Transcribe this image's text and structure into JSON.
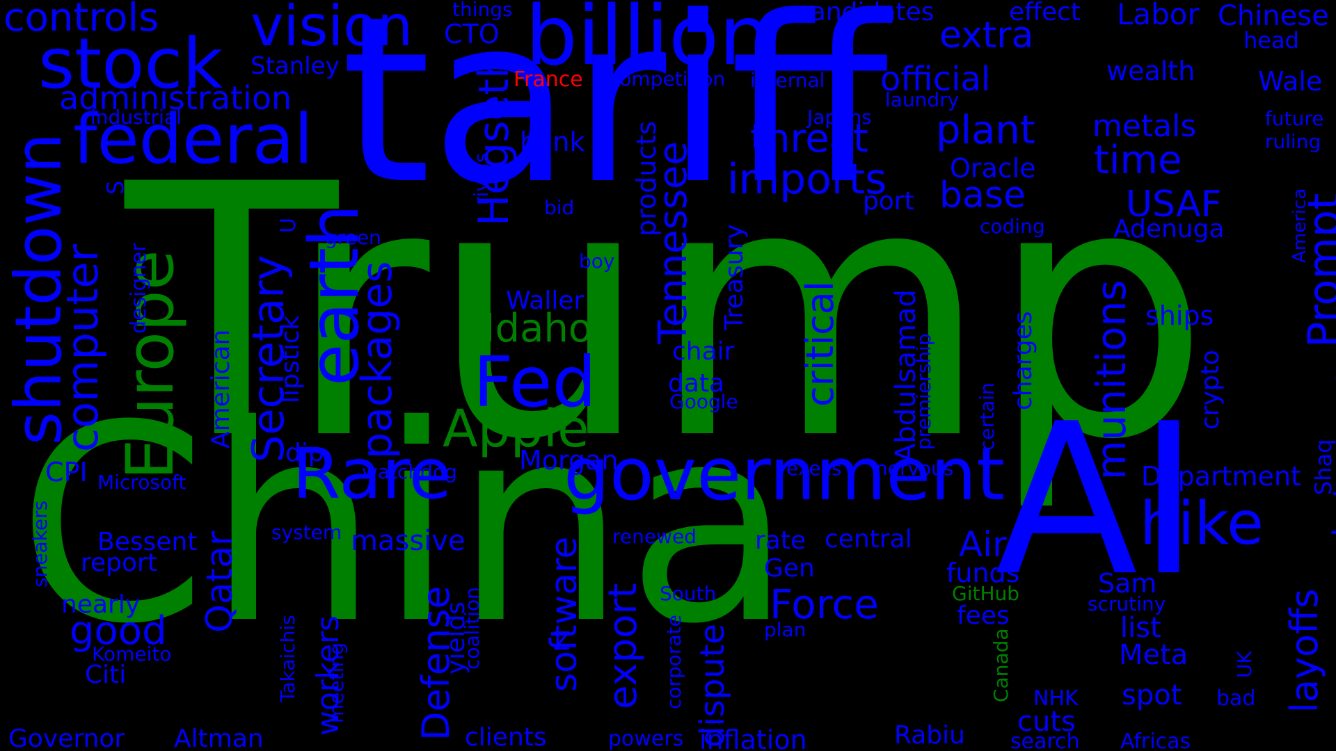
{
  "colors": {
    "background": "#000000",
    "blue": "#0000ff",
    "green": "#008000",
    "red": "#ff0000"
  },
  "words": [
    {
      "text": "Trump",
      "color": "green"
    },
    {
      "text": "China",
      "color": "green"
    },
    {
      "text": "tariff",
      "color": "blue"
    },
    {
      "text": "AI",
      "color": "blue"
    },
    {
      "text": "billion",
      "color": "blue"
    },
    {
      "text": "government",
      "color": "blue"
    },
    {
      "text": "Rare",
      "color": "blue"
    },
    {
      "text": "federal",
      "color": "blue"
    },
    {
      "text": "stock",
      "color": "blue"
    },
    {
      "text": "vision",
      "color": "blue"
    },
    {
      "text": "controls",
      "color": "blue"
    },
    {
      "text": "administration",
      "color": "blue"
    },
    {
      "text": "industrial",
      "color": "blue"
    },
    {
      "text": "shutdown",
      "color": "blue"
    },
    {
      "text": "computer",
      "color": "blue"
    },
    {
      "text": "Europe",
      "color": "green"
    },
    {
      "text": "earth",
      "color": "blue"
    },
    {
      "text": "Secretary",
      "color": "blue"
    },
    {
      "text": "lipstick",
      "color": "blue"
    },
    {
      "text": "packages",
      "color": "blue"
    },
    {
      "text": "Hegseth",
      "color": "blue"
    },
    {
      "text": "Fed",
      "color": "blue"
    },
    {
      "text": "Idaho",
      "color": "green"
    },
    {
      "text": "Apple",
      "color": "green"
    },
    {
      "text": "Tennessee",
      "color": "blue"
    },
    {
      "text": "products",
      "color": "blue"
    },
    {
      "text": "Treasury",
      "color": "blue"
    },
    {
      "text": "critical",
      "color": "blue"
    },
    {
      "text": "threat",
      "color": "blue"
    },
    {
      "text": "imports",
      "color": "blue"
    },
    {
      "text": "extra",
      "color": "blue"
    },
    {
      "text": "official",
      "color": "blue"
    },
    {
      "text": "plant",
      "color": "blue"
    },
    {
      "text": "base",
      "color": "blue"
    },
    {
      "text": "Oracle",
      "color": "blue"
    },
    {
      "text": "port",
      "color": "blue"
    },
    {
      "text": "Labor",
      "color": "blue"
    },
    {
      "text": "Chinese",
      "color": "blue"
    },
    {
      "text": "head",
      "color": "blue"
    },
    {
      "text": "wealth",
      "color": "blue"
    },
    {
      "text": "Wale",
      "color": "blue"
    },
    {
      "text": "metals",
      "color": "blue"
    },
    {
      "text": "future",
      "color": "blue"
    },
    {
      "text": "ruling",
      "color": "blue"
    },
    {
      "text": "time",
      "color": "blue"
    },
    {
      "text": "Prompt",
      "color": "blue"
    },
    {
      "text": "USAF",
      "color": "blue"
    },
    {
      "text": "Adenuga",
      "color": "blue"
    },
    {
      "text": "America",
      "color": "blue"
    },
    {
      "text": "technocratic",
      "color": "blue"
    },
    {
      "text": "munitions",
      "color": "blue"
    },
    {
      "text": "Abdulsamad",
      "color": "blue"
    },
    {
      "text": "premiership",
      "color": "blue"
    },
    {
      "text": "charges",
      "color": "blue"
    },
    {
      "text": "certain",
      "color": "blue"
    },
    {
      "text": "crypto",
      "color": "blue"
    },
    {
      "text": "ships",
      "color": "blue"
    },
    {
      "text": "Shaq",
      "color": "blue"
    },
    {
      "text": "hike",
      "color": "blue"
    },
    {
      "text": "Department",
      "color": "blue"
    },
    {
      "text": "market",
      "color": "blue"
    },
    {
      "text": "layoffs",
      "color": "blue"
    },
    {
      "text": "Sam",
      "color": "blue"
    },
    {
      "text": "scrutiny",
      "color": "blue"
    },
    {
      "text": "list",
      "color": "blue"
    },
    {
      "text": "Meta",
      "color": "blue"
    },
    {
      "text": "UK",
      "color": "blue"
    },
    {
      "text": "bad",
      "color": "blue"
    },
    {
      "text": "spot",
      "color": "blue"
    },
    {
      "text": "NHK",
      "color": "blue"
    },
    {
      "text": "cuts",
      "color": "blue"
    },
    {
      "text": "search",
      "color": "blue"
    },
    {
      "text": "Africas",
      "color": "blue"
    },
    {
      "text": "things",
      "color": "blue"
    },
    {
      "text": "CTO",
      "color": "blue"
    },
    {
      "text": "candidates",
      "color": "blue"
    },
    {
      "text": "effect",
      "color": "blue"
    },
    {
      "text": "France",
      "color": "red"
    },
    {
      "text": "competition",
      "color": "blue"
    },
    {
      "text": "internal",
      "color": "blue"
    },
    {
      "text": "laundry",
      "color": "blue"
    },
    {
      "text": "Japans",
      "color": "blue"
    },
    {
      "text": "Stanley",
      "color": "blue"
    },
    {
      "text": "bank",
      "color": "blue"
    },
    {
      "text": "rivals",
      "color": "blue"
    },
    {
      "text": "bid",
      "color": "blue"
    },
    {
      "text": "green",
      "color": "blue"
    },
    {
      "text": "coding",
      "color": "blue"
    },
    {
      "text": "boy",
      "color": "blue"
    },
    {
      "text": "Waller",
      "color": "blue"
    },
    {
      "text": "chair",
      "color": "blue"
    },
    {
      "text": "data",
      "color": "blue"
    },
    {
      "text": "Google",
      "color": "blue"
    },
    {
      "text": "S",
      "color": "blue"
    },
    {
      "text": "designer",
      "color": "blue"
    },
    {
      "text": "U",
      "color": "blue"
    },
    {
      "text": "American",
      "color": "blue"
    },
    {
      "text": "dip",
      "color": "blue"
    },
    {
      "text": "CPI",
      "color": "blue"
    },
    {
      "text": "Microsoft",
      "color": "blue"
    },
    {
      "text": "sneakers",
      "color": "blue"
    },
    {
      "text": "watchdog",
      "color": "blue"
    },
    {
      "text": "Morgan",
      "color": "blue"
    },
    {
      "text": "execs",
      "color": "blue"
    },
    {
      "text": "nervous",
      "color": "blue"
    },
    {
      "text": "system",
      "color": "blue"
    },
    {
      "text": "massive",
      "color": "blue"
    },
    {
      "text": "renewed",
      "color": "blue"
    },
    {
      "text": "rate",
      "color": "blue"
    },
    {
      "text": "central",
      "color": "blue"
    },
    {
      "text": "Air",
      "color": "blue"
    },
    {
      "text": "funds",
      "color": "blue"
    },
    {
      "text": "Bessent",
      "color": "blue"
    },
    {
      "text": "report",
      "color": "blue"
    },
    {
      "text": "Gen",
      "color": "blue"
    },
    {
      "text": "Force",
      "color": "blue"
    },
    {
      "text": "GitHub",
      "color": "green"
    },
    {
      "text": "fees",
      "color": "blue"
    },
    {
      "text": "Qatar",
      "color": "blue"
    },
    {
      "text": "nearly",
      "color": "blue"
    },
    {
      "text": "good",
      "color": "blue"
    },
    {
      "text": "Komeito",
      "color": "blue"
    },
    {
      "text": "Citi",
      "color": "blue"
    },
    {
      "text": "workers",
      "color": "blue"
    },
    {
      "text": "Takaichis",
      "color": "blue"
    },
    {
      "text": "Defense",
      "color": "blue"
    },
    {
      "text": "yields",
      "color": "blue"
    },
    {
      "text": "coalition",
      "color": "blue"
    },
    {
      "text": "software",
      "color": "blue"
    },
    {
      "text": "export",
      "color": "blue"
    },
    {
      "text": "Z",
      "color": "blue"
    },
    {
      "text": "South",
      "color": "blue"
    },
    {
      "text": "corporate",
      "color": "blue"
    },
    {
      "text": "dispute",
      "color": "blue"
    },
    {
      "text": "plan",
      "color": "blue"
    },
    {
      "text": "Canada",
      "color": "green"
    },
    {
      "text": "meeting",
      "color": "blue"
    },
    {
      "text": "Governor",
      "color": "blue"
    },
    {
      "text": "Altman",
      "color": "blue"
    },
    {
      "text": "clients",
      "color": "blue"
    },
    {
      "text": "powers",
      "color": "blue"
    },
    {
      "text": "inflation",
      "color": "blue"
    },
    {
      "text": "Rabiu",
      "color": "blue"
    }
  ]
}
